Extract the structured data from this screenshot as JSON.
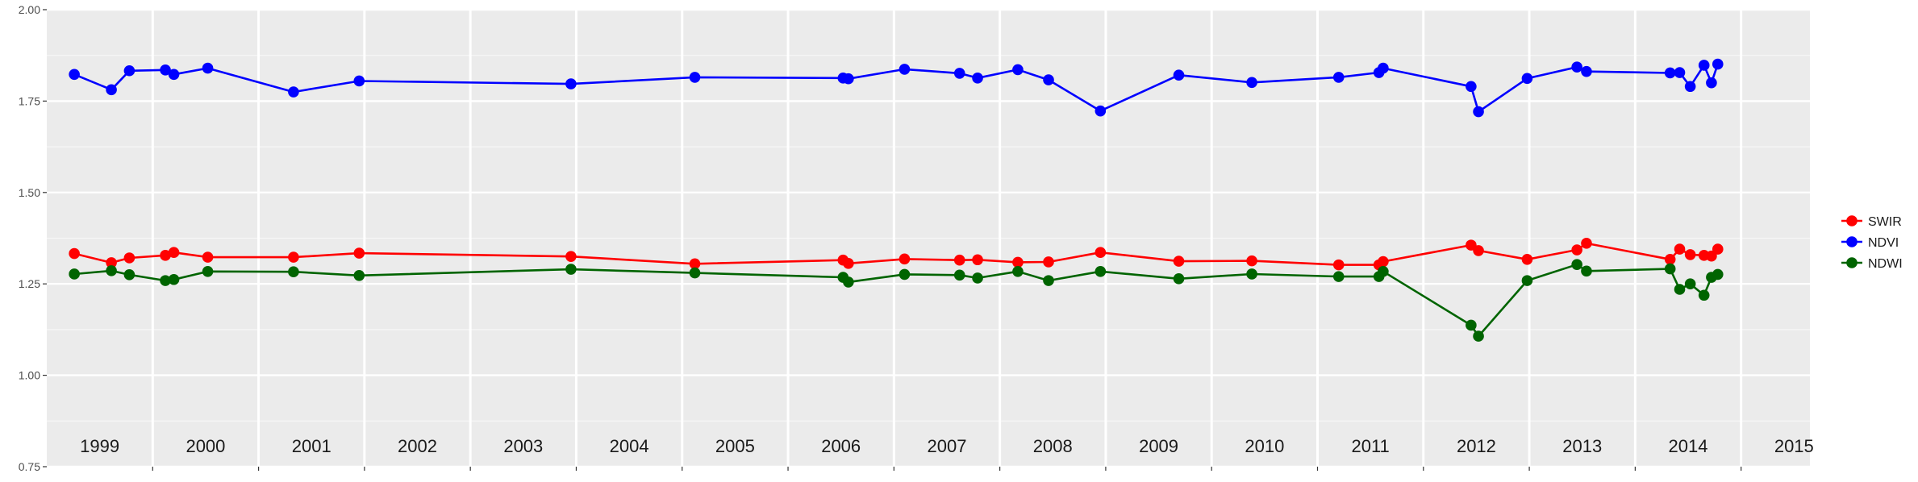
{
  "chart_data": {
    "type": "line",
    "title": "",
    "xlabel": "",
    "ylabel": "",
    "ylim": [
      0.75,
      2.0
    ],
    "xlim": [
      1999.0,
      2015.65
    ],
    "yticks": [
      0.75,
      1.0,
      1.25,
      1.5,
      1.75,
      2.0
    ],
    "ytick_labels": [
      "0.75",
      "1.00",
      "1.25",
      "1.50",
      "1.75",
      "2.00"
    ],
    "year_labels": [
      "1999",
      "2000",
      "2001",
      "2002",
      "2003",
      "2004",
      "2005",
      "2006",
      "2007",
      "2008",
      "2009",
      "2010",
      "2011",
      "2012",
      "2013",
      "2014",
      "2015"
    ],
    "grid": true,
    "legend_position": "right",
    "series": [
      {
        "name": "SWIR",
        "color": "#ff0000",
        "x": [
          1999.26,
          1999.61,
          1999.78,
          2000.12,
          2000.2,
          2000.52,
          2001.33,
          2001.95,
          2003.95,
          2005.12,
          2006.52,
          2006.57,
          2007.1,
          2007.62,
          2007.79,
          2008.17,
          2008.46,
          2008.95,
          2009.69,
          2010.38,
          2011.2,
          2011.58,
          2011.62,
          2012.45,
          2012.52,
          2012.98,
          2013.45,
          2013.54,
          2014.33,
          2014.42,
          2014.52,
          2014.65,
          2014.72,
          2014.78
        ],
        "y": [
          1.333,
          1.308,
          1.321,
          1.328,
          1.336,
          1.323,
          1.323,
          1.334,
          1.325,
          1.305,
          1.315,
          1.306,
          1.318,
          1.315,
          1.316,
          1.309,
          1.31,
          1.336,
          1.312,
          1.313,
          1.302,
          1.302,
          1.311,
          1.356,
          1.341,
          1.317,
          1.343,
          1.361,
          1.317,
          1.345,
          1.33,
          1.328,
          1.326,
          1.345
        ]
      },
      {
        "name": "NDVI",
        "color": "#0000ff",
        "x": [
          1999.26,
          1999.61,
          1999.78,
          2000.12,
          2000.2,
          2000.52,
          2001.33,
          2001.95,
          2003.95,
          2005.12,
          2006.52,
          2006.57,
          2007.1,
          2007.62,
          2007.79,
          2008.17,
          2008.46,
          2008.95,
          2009.69,
          2010.38,
          2011.2,
          2011.58,
          2011.62,
          2012.45,
          2012.52,
          2012.98,
          2013.45,
          2013.54,
          2014.33,
          2014.42,
          2014.52,
          2014.65,
          2014.72,
          2014.78
        ],
        "y": [
          1.823,
          1.781,
          1.833,
          1.835,
          1.823,
          1.84,
          1.775,
          1.805,
          1.797,
          1.815,
          1.813,
          1.811,
          1.837,
          1.826,
          1.813,
          1.836,
          1.808,
          1.723,
          1.821,
          1.801,
          1.815,
          1.828,
          1.84,
          1.79,
          1.721,
          1.812,
          1.843,
          1.831,
          1.827,
          1.828,
          1.79,
          1.848,
          1.8,
          1.851
        ]
      },
      {
        "name": "NDWI",
        "color": "#006400",
        "x": [
          1999.26,
          1999.61,
          1999.78,
          2000.12,
          2000.2,
          2000.52,
          2001.33,
          2001.95,
          2003.95,
          2005.12,
          2006.52,
          2006.57,
          2007.1,
          2007.62,
          2007.79,
          2008.17,
          2008.46,
          2008.95,
          2009.69,
          2010.38,
          2011.2,
          2011.58,
          2011.62,
          2012.45,
          2012.52,
          2012.98,
          2013.45,
          2013.54,
          2014.33,
          2014.42,
          2014.52,
          2014.65,
          2014.72,
          2014.78
        ],
        "y": [
          1.277,
          1.286,
          1.275,
          1.259,
          1.262,
          1.284,
          1.283,
          1.273,
          1.29,
          1.28,
          1.268,
          1.255,
          1.276,
          1.274,
          1.266,
          1.284,
          1.259,
          1.284,
          1.264,
          1.277,
          1.27,
          1.27,
          1.284,
          1.137,
          1.107,
          1.259,
          1.303,
          1.285,
          1.291,
          1.235,
          1.25,
          1.219,
          1.268,
          1.276
        ]
      }
    ]
  }
}
